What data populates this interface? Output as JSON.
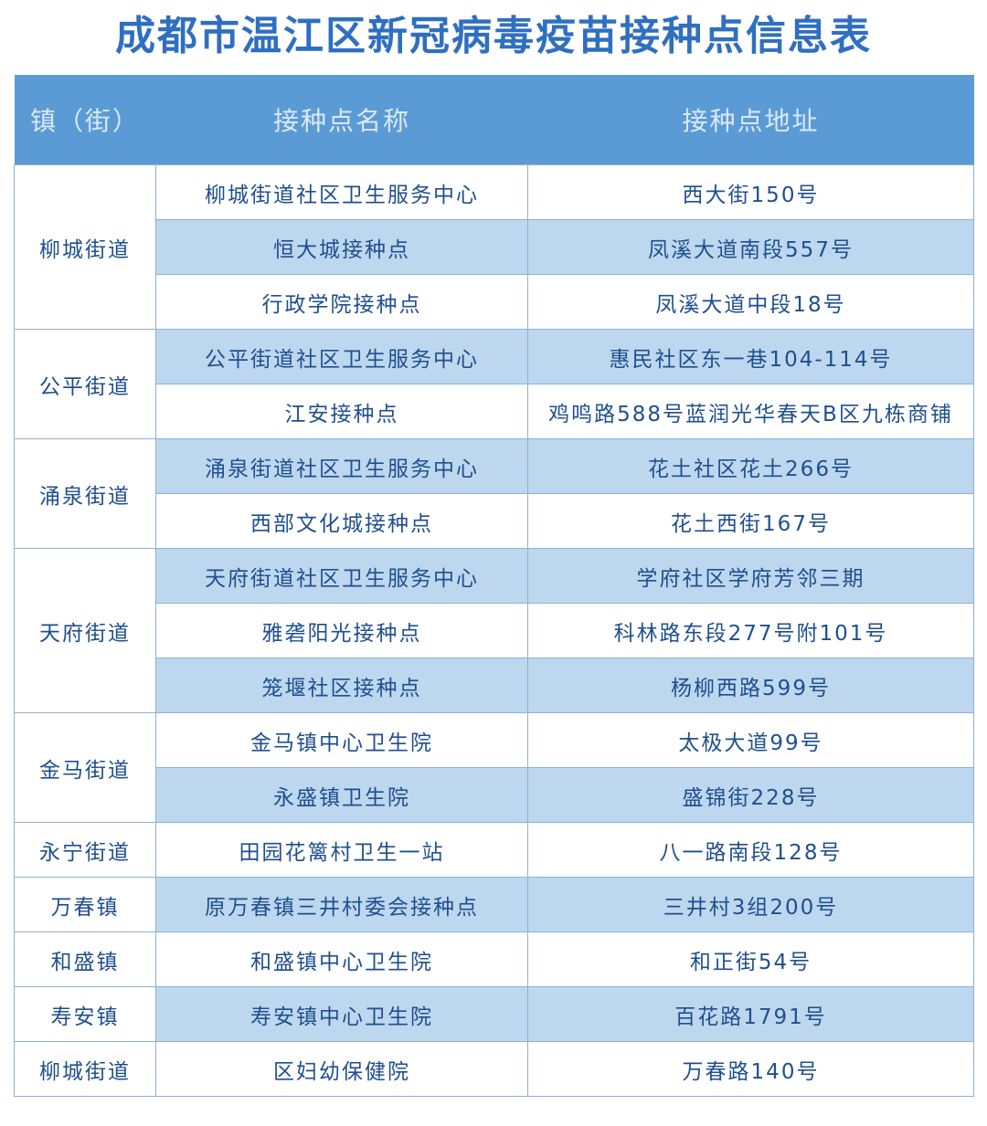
{
  "title": "成都市温江区新冠病毒疫苗接种点信息表",
  "table": {
    "headers": [
      "镇（街）",
      "接种点名称",
      "接种点地址"
    ],
    "groups": [
      {
        "town": "柳城街道",
        "rows": [
          [
            "柳城街道社区卫生服务中心",
            "西大街150号"
          ],
          [
            "恒大城接种点",
            "凤溪大道南段557号"
          ],
          [
            "行政学院接种点",
            "凤溪大道中段18号"
          ]
        ]
      },
      {
        "town": "公平街道",
        "rows": [
          [
            "公平街道社区卫生服务中心",
            "惠民社区东一巷104-114号"
          ],
          [
            "江安接种点",
            "鸡鸣路588号蓝润光华春天B区九栋商铺"
          ]
        ]
      },
      {
        "town": "涌泉街道",
        "rows": [
          [
            "涌泉街道社区卫生服务中心",
            "花土社区花土266号"
          ],
          [
            "西部文化城接种点",
            "花土西街167号"
          ]
        ]
      },
      {
        "town": "天府街道",
        "rows": [
          [
            "天府街道社区卫生服务中心",
            "学府社区学府芳邻三期"
          ],
          [
            "雅砻阳光接种点",
            "科林路东段277号附101号"
          ],
          [
            "笼堰社区接种点",
            "杨柳西路599号"
          ]
        ]
      },
      {
        "town": "金马街道",
        "rows": [
          [
            "金马镇中心卫生院",
            "太极大道99号"
          ],
          [
            "永盛镇卫生院",
            "盛锦街228号"
          ]
        ]
      },
      {
        "town": "永宁街道",
        "rows": [
          [
            "田园花篱村卫生一站",
            "八一路南段128号"
          ]
        ]
      },
      {
        "town": "万春镇",
        "rows": [
          [
            "原万春镇三井村委会接种点",
            "三井村3组200号"
          ]
        ]
      },
      {
        "town": "和盛镇",
        "rows": [
          [
            "和盛镇中心卫生院",
            "和正街54号"
          ]
        ]
      },
      {
        "town": "寿安镇",
        "rows": [
          [
            "寿安镇中心卫生院",
            "百花路1791号"
          ]
        ]
      },
      {
        "town": "柳城街道",
        "rows": [
          [
            "区妇幼保健院",
            "万春路140号"
          ]
        ]
      }
    ]
  }
}
